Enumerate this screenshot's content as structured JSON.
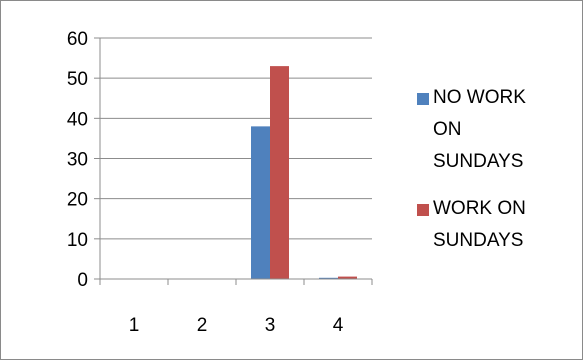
{
  "chart_data": {
    "type": "bar",
    "categories": [
      "1",
      "2",
      "3",
      "4"
    ],
    "series": [
      {
        "name": "NO WORK ON SUNDAYS",
        "values": [
          0,
          0,
          38,
          0.3
        ],
        "color": "#4f81bd"
      },
      {
        "name": "WORK ON SUNDAYS",
        "values": [
          0,
          0,
          53,
          0.6
        ],
        "color": "#c0504d"
      }
    ],
    "ylim": [
      0,
      60
    ],
    "yticks": [
      0,
      10,
      20,
      30,
      40,
      50,
      60
    ],
    "grid": true,
    "legend_position": "right"
  }
}
